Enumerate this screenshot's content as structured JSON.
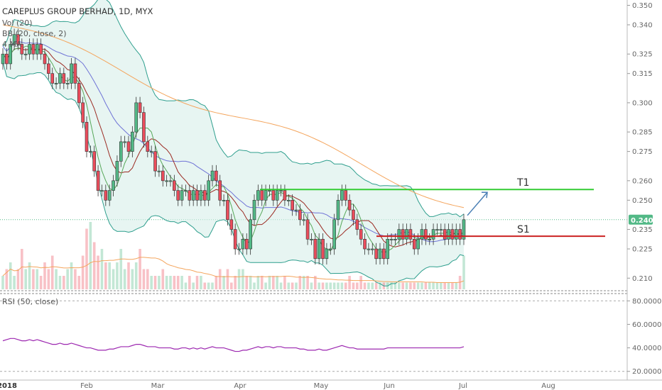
{
  "header": {
    "title": "CAREPLUS GROUP BERHAD, 1D, MYX",
    "volume_label": "Vol (20)",
    "bb_label": "BB (20, close, 2)",
    "ma_label": "4 MA",
    "rsi_label": "RSI (50, close)"
  },
  "price_axis": {
    "ticks": [
      "0.350",
      "0.340",
      "0.325",
      "0.315",
      "0.300",
      "0.285",
      "0.275",
      "0.260",
      "0.250",
      "0.235",
      "0.225",
      "0.210"
    ],
    "tick_values": [
      0.35,
      0.34,
      0.325,
      0.315,
      0.3,
      0.285,
      0.275,
      0.26,
      0.25,
      0.235,
      0.225,
      0.21
    ],
    "current_price": "0.240"
  },
  "rsi_axis": {
    "ticks": [
      "80.0000",
      "60.0000",
      "40.0000",
      "20.0000"
    ],
    "tick_values": [
      80,
      60,
      40,
      20
    ]
  },
  "x_axis": {
    "labels": [
      "2018",
      "Feb",
      "Mar",
      "Apr",
      "May",
      "Jun",
      "Jul",
      "Aug"
    ]
  },
  "annotations": {
    "t1_label": "T1",
    "s1_label": "S1",
    "t1_level": 0.2555,
    "s1_level": 0.2315
  },
  "colors": {
    "up": "#53b987",
    "down": "#eb4d5c",
    "bb_band": "#2f9f8e",
    "bb_fill": "#d7efea",
    "ma_blue": "#6f73d6",
    "ma_orange": "#f4a55d",
    "ma_dark": "#9b2a22",
    "ma_green": "#57a85a",
    "t1_line": "#33cc33",
    "s1_line": "#cc2222",
    "rsi": "#9c27b0",
    "arrow": "#4a7fb5"
  },
  "chart_data": {
    "type": "candlestick",
    "title": "CAREPLUS GROUP BERHAD, 1D, MYX",
    "ylim": [
      0.205,
      0.352
    ],
    "rsi_ylim": [
      15,
      85
    ],
    "dates": [
      "Jan",
      "Jan",
      "Jan",
      "Jan",
      "Jan",
      "Jan",
      "Jan",
      "Jan",
      "Jan",
      "Jan",
      "Jan",
      "Jan",
      "Jan",
      "Jan",
      "Jan",
      "Jan",
      "Jan",
      "Jan",
      "Jan",
      "Jan",
      "Jan",
      "Jan",
      "Feb",
      "Feb",
      "Feb",
      "Feb",
      "Feb",
      "Feb",
      "Feb",
      "Feb",
      "Feb",
      "Feb",
      "Feb",
      "Feb",
      "Feb",
      "Feb",
      "Feb",
      "Feb",
      "Feb",
      "Feb",
      "Mar",
      "Mar",
      "Mar",
      "Mar",
      "Mar",
      "Mar",
      "Mar",
      "Mar",
      "Mar",
      "Mar",
      "Mar",
      "Mar",
      "Mar",
      "Mar",
      "Mar",
      "Mar",
      "Mar",
      "Mar",
      "Mar",
      "Mar",
      "Apr",
      "Apr",
      "Apr",
      "Apr",
      "Apr",
      "Apr",
      "Apr",
      "Apr",
      "Apr",
      "Apr",
      "Apr",
      "Apr",
      "Apr",
      "Apr",
      "Apr",
      "Apr",
      "Apr",
      "Apr",
      "Apr",
      "Apr",
      "May",
      "May",
      "May",
      "May",
      "May",
      "May",
      "May",
      "May",
      "May",
      "May",
      "May",
      "May",
      "May",
      "May",
      "May",
      "May",
      "May",
      "May",
      "May",
      "May",
      "Jun",
      "Jun",
      "Jun",
      "Jun",
      "Jun",
      "Jun",
      "Jun",
      "Jun",
      "Jun",
      "Jun",
      "Jun",
      "Jun",
      "Jun",
      "Jun",
      "Jun",
      "Jun",
      "Jun",
      "Jun",
      "Jun",
      "Jun",
      "Jun",
      "Jul"
    ],
    "close": [
      0.325,
      0.32,
      0.33,
      0.335,
      0.33,
      0.325,
      0.325,
      0.33,
      0.325,
      0.33,
      0.325,
      0.32,
      0.315,
      0.31,
      0.31,
      0.315,
      0.31,
      0.31,
      0.32,
      0.31,
      0.3,
      0.29,
      0.275,
      0.275,
      0.265,
      0.255,
      0.255,
      0.25,
      0.255,
      0.26,
      0.27,
      0.28,
      0.28,
      0.275,
      0.285,
      0.3,
      0.295,
      0.28,
      0.275,
      0.275,
      0.265,
      0.265,
      0.26,
      0.26,
      0.26,
      0.255,
      0.25,
      0.255,
      0.255,
      0.25,
      0.255,
      0.25,
      0.255,
      0.25,
      0.26,
      0.265,
      0.26,
      0.25,
      0.25,
      0.24,
      0.235,
      0.225,
      0.225,
      0.23,
      0.225,
      0.24,
      0.25,
      0.255,
      0.25,
      0.255,
      0.255,
      0.25,
      0.255,
      0.255,
      0.25,
      0.25,
      0.245,
      0.245,
      0.24,
      0.24,
      0.23,
      0.23,
      0.22,
      0.23,
      0.22,
      0.225,
      0.225,
      0.24,
      0.25,
      0.255,
      0.25,
      0.245,
      0.24,
      0.235,
      0.23,
      0.225,
      0.225,
      0.225,
      0.22,
      0.225,
      0.22,
      0.23,
      0.23,
      0.23,
      0.235,
      0.23,
      0.235,
      0.23,
      0.225,
      0.23,
      0.235,
      0.23,
      0.23,
      0.235,
      0.235,
      0.235,
      0.23,
      0.235,
      0.23,
      0.235,
      0.23,
      0.24
    ],
    "volume": [
      2,
      3,
      4,
      2,
      3,
      6,
      3,
      4,
      3,
      3,
      2,
      4,
      3,
      5,
      3,
      2,
      2,
      3,
      4,
      3,
      2,
      5,
      9,
      10,
      7,
      5,
      6,
      4,
      4,
      3,
      4,
      6,
      3,
      4,
      3,
      4,
      6,
      3,
      3,
      2,
      2,
      2,
      3,
      2,
      2,
      2,
      2,
      2,
      1,
      2,
      1,
      2,
      2,
      1,
      1,
      1,
      2,
      3,
      2,
      3,
      1,
      2,
      3,
      3,
      2,
      2,
      1,
      2,
      2,
      1,
      2,
      2,
      2,
      1,
      2,
      1,
      1,
      1,
      2,
      2,
      2,
      1,
      2,
      1,
      1,
      1,
      1,
      1,
      1,
      1,
      1,
      2,
      1,
      1,
      2,
      1,
      1,
      1,
      1,
      1,
      1,
      1,
      1,
      1,
      1,
      1,
      1,
      1,
      1,
      1,
      1,
      1,
      1,
      1,
      1,
      1,
      1,
      1,
      1,
      1,
      2,
      5
    ],
    "rsi": [
      46,
      47,
      48,
      48,
      47,
      46,
      46,
      47,
      46,
      47,
      46,
      45,
      44,
      43,
      43,
      44,
      43,
      43,
      44,
      43,
      42,
      41,
      40,
      40,
      39,
      38,
      38,
      38,
      39,
      39,
      40,
      41,
      41,
      41,
      42,
      43,
      43,
      42,
      41,
      41,
      41,
      40,
      40,
      40,
      40,
      39,
      39,
      40,
      40,
      39,
      40,
      39,
      40,
      39,
      40,
      41,
      40,
      40,
      40,
      39,
      38,
      37,
      37,
      38,
      38,
      39,
      40,
      41,
      40,
      41,
      41,
      40,
      41,
      41,
      40,
      40,
      40,
      40,
      39,
      39,
      38,
      38,
      38,
      39,
      38,
      38,
      39,
      40,
      41,
      42,
      41,
      40,
      40,
      39,
      39,
      39,
      39,
      39,
      39,
      39,
      39,
      40,
      40,
      40,
      40,
      40,
      40,
      40,
      40,
      40,
      40,
      40,
      40,
      40,
      40,
      40,
      40,
      40,
      40,
      40,
      40,
      41
    ]
  }
}
